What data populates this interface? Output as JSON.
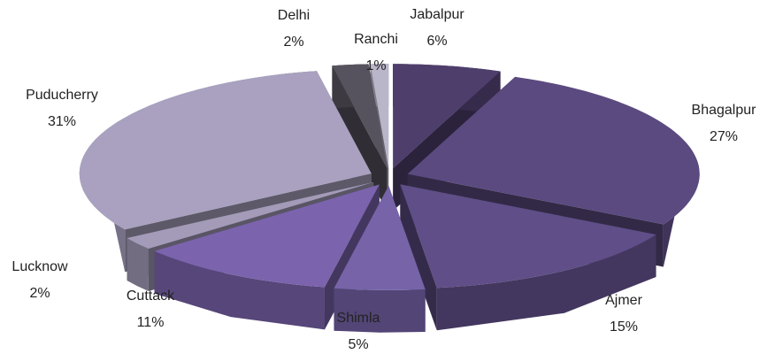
{
  "chart_data": {
    "type": "pie",
    "categories": [
      "Jabalpur",
      "Bhagalpur",
      "Ajmer",
      "Shimla",
      "Cuttack",
      "Lucknow",
      "Puducherry",
      "Delhi",
      "Ranchi"
    ],
    "values": [
      6,
      27,
      15,
      5,
      11,
      2,
      31,
      2,
      1
    ],
    "value_labels": [
      "6%",
      "27%",
      "15%",
      "5%",
      "11%",
      "2%",
      "31%",
      "2%",
      "1%"
    ],
    "colors": [
      "#4e3e6c",
      "#5b4a80",
      "#5f4e87",
      "#7663a8",
      "#7b64ad",
      "#a39bb8",
      "#a9a1bf",
      "#57535e",
      "#bab6c9"
    ]
  }
}
